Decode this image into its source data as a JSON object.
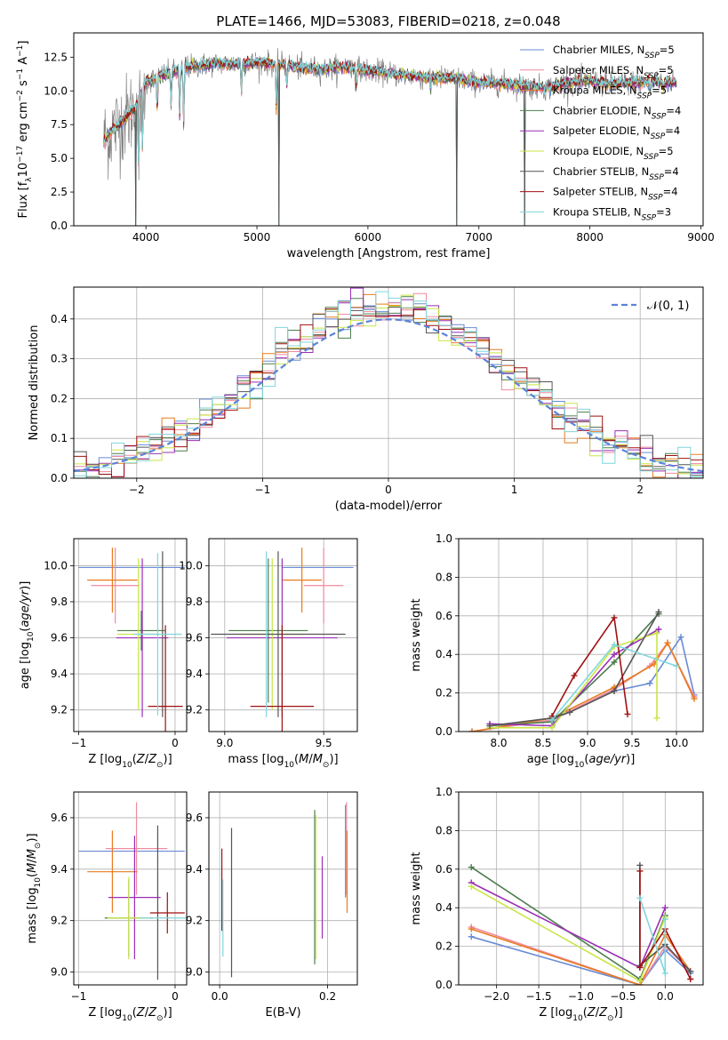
{
  "colors": {
    "Chabrier MILES": "#6a8bd6",
    "Salpeter MILES": "#f08aa0",
    "Kroupa MILES": "#e87b1e",
    "Chabrier ELODIE": "#4e7d4e",
    "Salpeter ELODIE": "#9b2fb5",
    "Kroupa ELODIE": "#c8e646",
    "Chabrier STELIB": "#555555",
    "Salpeter STELIB": "#a01010",
    "Kroupa STELIB": "#7fd6dc",
    "normal": "#5b84d8",
    "grid": "#b0b0b0",
    "data": "#808080"
  },
  "legend": [
    {
      "name": "Chabrier MILES",
      "nssp": "5"
    },
    {
      "name": "Salpeter MILES",
      "nssp": "5"
    },
    {
      "name": "Kroupa MILES",
      "nssp": "5"
    },
    {
      "name": "Chabrier ELODIE",
      "nssp": "4"
    },
    {
      "name": "Salpeter ELODIE",
      "nssp": "4"
    },
    {
      "name": "Kroupa ELODIE",
      "nssp": "5"
    },
    {
      "name": "Chabrier STELIB",
      "nssp": "4"
    },
    {
      "name": "Salpeter STELIB",
      "nssp": "4"
    },
    {
      "name": "Kroupa STELIB",
      "nssp": "3"
    }
  ],
  "chart_data": [
    {
      "id": "spectrum",
      "type": "line",
      "title": "PLATE=1466, MJD=53083, FIBERID=0218, z=0.048",
      "xlabel": "wavelength [Angstrom, rest frame]",
      "ylabel": "Flux [f_λ 10^-17 erg cm^-2 s^-1 A^-1]",
      "xlim": [
        3350,
        9020
      ],
      "ylim": [
        0,
        14.3
      ],
      "xticks": [
        4000,
        5000,
        6000,
        7000,
        8000,
        9000
      ],
      "yticks": [
        0.0,
        2.5,
        5.0,
        7.5,
        10.0,
        12.5
      ],
      "grid": false,
      "legend_position": "top-right",
      "continuum": [
        [
          3620,
          6.3
        ],
        [
          3700,
          7.1
        ],
        [
          3800,
          7.9
        ],
        [
          3900,
          8.7
        ],
        [
          4000,
          10.6
        ],
        [
          4100,
          11.0
        ],
        [
          4200,
          11.3
        ],
        [
          4400,
          11.8
        ],
        [
          4600,
          12.0
        ],
        [
          4800,
          12.0
        ],
        [
          5000,
          12.1
        ],
        [
          5200,
          12.0
        ],
        [
          5400,
          11.7
        ],
        [
          5600,
          11.6
        ],
        [
          5800,
          11.8
        ],
        [
          6000,
          11.5
        ],
        [
          6200,
          11.3
        ],
        [
          6500,
          11.0
        ],
        [
          6800,
          10.9
        ],
        [
          7000,
          10.6
        ],
        [
          7200,
          10.6
        ],
        [
          7400,
          10.4
        ],
        [
          7600,
          10.2
        ],
        [
          7800,
          10.6
        ],
        [
          8000,
          10.7
        ],
        [
          8200,
          10.5
        ],
        [
          8400,
          10.6
        ],
        [
          8600,
          10.7
        ],
        [
          8780,
          10.6
        ]
      ],
      "absorption_features": [
        [
          3934,
          4.0
        ],
        [
          3969,
          5.5
        ],
        [
          4102,
          8.5
        ],
        [
          4227,
          9.0
        ],
        [
          4304,
          8.2
        ],
        [
          4340,
          7.5
        ],
        [
          4861,
          9.8
        ],
        [
          5176,
          8.5
        ],
        [
          5270,
          10.4
        ],
        [
          5893,
          10.3
        ],
        [
          6563,
          10.0
        ],
        [
          8542,
          10.0
        ],
        [
          8662,
          10.0
        ]
      ],
      "model_dips": [
        [
          5200,
          0.0
        ],
        [
          6800,
          0.0
        ],
        [
          7410,
          0.0
        ],
        [
          3910,
          0.0
        ]
      ]
    },
    {
      "id": "residuals",
      "type": "histogram",
      "xlabel": "(data-model)/error",
      "ylabel": "Normed distribution",
      "xlim": [
        -2.5,
        2.5
      ],
      "ylim": [
        0,
        0.48
      ],
      "xticks": [
        -2,
        -1,
        0,
        1,
        2
      ],
      "yticks": [
        0.0,
        0.1,
        0.2,
        0.3,
        0.4
      ],
      "grid": true,
      "legend_position": "top-right",
      "legend": [
        "𝒩(0, 1)"
      ],
      "bin_width": 0.1,
      "bin_start": -2.5
    },
    {
      "id": "age_vs_Z",
      "type": "errorbar",
      "xlabel": "Z [log10(Z/Z⊙)]",
      "ylabel": "age [log10(age/yr)]",
      "xlim": [
        -1.05,
        0.12
      ],
      "ylim": [
        9.08,
        10.15
      ],
      "xticks": [
        -1,
        0
      ],
      "yticks": [
        9.2,
        9.4,
        9.6,
        9.8,
        10.0
      ],
      "grid": true,
      "points": [
        {
          "m": "Chabrier MILES",
          "x": -0.45,
          "xerr": 0.55,
          "y": 9.99,
          "yerr": 0.0
        },
        {
          "m": "Salpeter MILES",
          "x": -0.62,
          "xerr": 0.25,
          "y": 9.89,
          "yerr": 0.21
        },
        {
          "m": "Kroupa MILES",
          "x": -0.65,
          "xerr": 0.26,
          "y": 9.92,
          "yerr": 0.18
        },
        {
          "m": "Chabrier ELODIE",
          "x": -0.35,
          "xerr": 0.25,
          "y": 9.64,
          "yerr": 0.11
        },
        {
          "m": "Salpeter ELODIE",
          "x": -0.34,
          "xerr": 0.27,
          "y": 9.6,
          "yerr": 0.44
        },
        {
          "m": "Kroupa ELODIE",
          "x": -0.38,
          "xerr": 0.22,
          "y": 9.62,
          "yerr": 0.42
        },
        {
          "m": "Chabrier STELIB",
          "x": -0.13,
          "xerr": 0.0,
          "y": 9.62,
          "yerr": 0.46
        },
        {
          "m": "Salpeter STELIB",
          "x": -0.1,
          "xerr": 0.18,
          "y": 9.22,
          "yerr": 0.45
        },
        {
          "m": "Kroupa STELIB",
          "x": -0.18,
          "xerr": 0.25,
          "y": 9.62,
          "yerr": 0.45
        }
      ]
    },
    {
      "id": "age_vs_mass",
      "type": "errorbar",
      "xlabel": "mass [log10(M/M⊙)]",
      "ylabel": "",
      "xlim": [
        8.92,
        9.67
      ],
      "ylim": [
        9.08,
        10.15
      ],
      "xticks": [
        9.0,
        9.5
      ],
      "yticks": [
        9.2,
        9.4,
        9.6,
        9.8,
        10.0
      ],
      "grid": true,
      "points": [
        {
          "m": "Chabrier MILES",
          "x": 9.47,
          "xerr": 0.18,
          "y": 9.99,
          "yerr": 0.0
        },
        {
          "m": "Salpeter MILES",
          "x": 9.5,
          "xerr": 0.1,
          "y": 9.89,
          "yerr": 0.21
        },
        {
          "m": "Kroupa MILES",
          "x": 9.39,
          "xerr": 0.1,
          "y": 9.92,
          "yerr": 0.18
        },
        {
          "m": "Chabrier ELODIE",
          "x": 9.22,
          "xerr": 0.2,
          "y": 9.64,
          "yerr": 0.4
        },
        {
          "m": "Salpeter ELODIE",
          "x": 9.29,
          "xerr": 0.28,
          "y": 9.6,
          "yerr": 0.44
        },
        {
          "m": "Kroupa ELODIE",
          "x": 9.24,
          "xerr": 0.16,
          "y": 9.62,
          "yerr": 0.42
        },
        {
          "m": "Chabrier STELIB",
          "x": 9.27,
          "xerr": 0.34,
          "y": 9.62,
          "yerr": 0.46
        },
        {
          "m": "Salpeter STELIB",
          "x": 9.29,
          "xerr": 0.16,
          "y": 9.22,
          "yerr": 0.45
        },
        {
          "m": "Kroupa STELIB",
          "x": 9.21,
          "xerr": 0.0,
          "y": 9.62,
          "yerr": 0.46
        }
      ]
    },
    {
      "id": "weight_vs_age",
      "type": "line",
      "xlabel": "age [log10(age/yr)]",
      "ylabel": "mass weight",
      "xlim": [
        7.55,
        10.3
      ],
      "ylim": [
        0,
        1.0
      ],
      "xticks": [
        8.0,
        8.5,
        9.0,
        9.5,
        10.0
      ],
      "yticks": [
        0.0,
        0.2,
        0.4,
        0.6,
        0.8,
        1.0
      ],
      "grid": true,
      "series": [
        {
          "m": "Chabrier MILES",
          "x": [
            7.7,
            8.6,
            9.3,
            9.7,
            10.05,
            10.2
          ],
          "y": [
            0.0,
            0.06,
            0.21,
            0.25,
            0.49,
            0.19
          ]
        },
        {
          "m": "Salpeter MILES",
          "x": [
            7.7,
            8.6,
            9.3,
            9.7,
            9.9,
            10.2
          ],
          "y": [
            0.0,
            0.06,
            0.22,
            0.34,
            0.46,
            0.18
          ]
        },
        {
          "m": "Kroupa MILES",
          "x": [
            7.7,
            8.6,
            9.3,
            9.75,
            9.9,
            10.2
          ],
          "y": [
            0.0,
            0.07,
            0.23,
            0.35,
            0.46,
            0.17
          ]
        },
        {
          "m": "Chabrier ELODIE",
          "x": [
            7.9,
            8.6,
            9.3,
            9.8
          ],
          "y": [
            0.03,
            0.05,
            0.36,
            0.61
          ]
        },
        {
          "m": "Salpeter ELODIE",
          "x": [
            7.9,
            8.6,
            9.3,
            9.8
          ],
          "y": [
            0.04,
            0.03,
            0.4,
            0.53
          ]
        },
        {
          "m": "Kroupa ELODIE",
          "x": [
            7.9,
            8.6,
            9.3,
            9.78,
            9.78
          ],
          "y": [
            0.02,
            0.02,
            0.44,
            0.51,
            0.07
          ]
        },
        {
          "m": "Chabrier STELIB",
          "x": [
            7.9,
            8.6,
            8.8,
            9.3,
            9.8
          ],
          "y": [
            0.03,
            0.07,
            0.1,
            0.21,
            0.62
          ]
        },
        {
          "m": "Salpeter STELIB",
          "x": [
            8.6,
            8.85,
            9.3,
            9.45
          ],
          "y": [
            0.08,
            0.29,
            0.59,
            0.09
          ]
        },
        {
          "m": "Kroupa STELIB",
          "x": [
            8.6,
            9.3,
            10.0
          ],
          "y": [
            0.06,
            0.45,
            0.34
          ]
        }
      ]
    },
    {
      "id": "mass_vs_Z",
      "type": "errorbar",
      "xlabel": "Z [log10(Z/Z⊙)]",
      "ylabel": "mass [log10(M/M⊙)]",
      "xlim": [
        -1.05,
        0.12
      ],
      "ylim": [
        8.95,
        9.7
      ],
      "xticks": [
        -1,
        0
      ],
      "yticks": [
        9.0,
        9.2,
        9.4,
        9.6
      ],
      "grid": true,
      "points": [
        {
          "m": "Chabrier MILES",
          "x": -0.45,
          "xerr": 0.55,
          "y": 9.47,
          "yerr": 0.0
        },
        {
          "m": "Salpeter MILES",
          "x": -0.4,
          "xerr": 0.32,
          "y": 9.48,
          "yerr": 0.18
        },
        {
          "m": "Kroupa MILES",
          "x": -0.65,
          "xerr": 0.26,
          "y": 9.39,
          "yerr": 0.16
        },
        {
          "m": "Chabrier ELODIE",
          "x": -0.48,
          "xerr": 0.25,
          "y": 9.21,
          "yerr": 0.15
        },
        {
          "m": "Salpeter ELODIE",
          "x": -0.42,
          "xerr": 0.27,
          "y": 9.29,
          "yerr": 0.24
        },
        {
          "m": "Kroupa ELODIE",
          "x": -0.48,
          "xerr": 0.22,
          "y": 9.21,
          "yerr": 0.16
        },
        {
          "m": "Chabrier STELIB",
          "x": -0.18,
          "xerr": 0.0,
          "y": 9.27,
          "yerr": 0.3
        },
        {
          "m": "Salpeter STELIB",
          "x": -0.08,
          "xerr": 0.18,
          "y": 9.23,
          "yerr": 0.08
        },
        {
          "m": "Kroupa STELIB",
          "x": -0.12,
          "xerr": 0.25,
          "y": 9.21,
          "yerr": 0.0
        }
      ]
    },
    {
      "id": "mass_vs_ebv",
      "type": "errorbar",
      "xlabel": "E(B-V)",
      "ylabel": "",
      "xlim": [
        -0.02,
        0.255
      ],
      "ylim": [
        8.95,
        9.7
      ],
      "xticks": [
        0.0,
        0.2
      ],
      "yticks": [
        9.0,
        9.2,
        9.4,
        9.6
      ],
      "grid": true,
      "points": [
        {
          "m": "Chabrier MILES",
          "x": 0.233,
          "y": 9.47,
          "yerr": 0.18
        },
        {
          "m": "Salpeter MILES",
          "x": 0.235,
          "y": 9.48,
          "yerr": 0.18
        },
        {
          "m": "Kroupa MILES",
          "x": 0.236,
          "y": 9.39,
          "yerr": 0.16
        },
        {
          "m": "Chabrier ELODIE",
          "x": 0.176,
          "y": 9.33,
          "yerr": 0.3
        },
        {
          "m": "Salpeter ELODIE",
          "x": 0.19,
          "y": 9.29,
          "yerr": 0.16
        },
        {
          "m": "Kroupa ELODIE",
          "x": 0.178,
          "y": 9.33,
          "yerr": 0.28
        },
        {
          "m": "Chabrier STELIB",
          "x": 0.022,
          "y": 9.27,
          "yerr": 0.29
        },
        {
          "m": "Salpeter STELIB",
          "x": 0.004,
          "y": 9.32,
          "yerr": 0.16
        },
        {
          "m": "Kroupa STELIB",
          "x": 0.006,
          "y": 9.21,
          "yerr": 0.15
        }
      ]
    },
    {
      "id": "weight_vs_Z",
      "type": "line",
      "xlabel": "Z [log10(Z/Z⊙)]",
      "ylabel": "mass weight",
      "xlim": [
        -2.45,
        0.45
      ],
      "ylim": [
        0,
        1.0
      ],
      "xticks": [
        -2.0,
        -1.5,
        -1.0,
        -0.5,
        0.0
      ],
      "yticks": [
        0.0,
        0.2,
        0.4,
        0.6,
        0.8,
        1.0
      ],
      "grid": true,
      "series": [
        {
          "m": "Chabrier MILES",
          "x": [
            -2.3,
            -0.3,
            0.0,
            0.3
          ],
          "y": [
            0.25,
            0.0,
            0.18,
            0.06
          ]
        },
        {
          "m": "Salpeter MILES",
          "x": [
            -2.3,
            -0.3,
            0.0,
            0.3
          ],
          "y": [
            0.3,
            0.0,
            0.2,
            0.07
          ]
        },
        {
          "m": "Kroupa MILES",
          "x": [
            -2.3,
            -0.3,
            0.0,
            0.3
          ],
          "y": [
            0.29,
            0.0,
            0.26,
            0.07
          ]
        },
        {
          "m": "Chabrier ELODIE",
          "x": [
            -2.3,
            -0.3,
            0.0
          ],
          "y": [
            0.61,
            0.03,
            0.36
          ]
        },
        {
          "m": "Salpeter ELODIE",
          "x": [
            -2.3,
            -0.3,
            0.0
          ],
          "y": [
            0.53,
            0.09,
            0.4
          ]
        },
        {
          "m": "Kroupa ELODIE",
          "x": [
            -2.3,
            -0.3,
            0.0
          ],
          "y": [
            0.51,
            0.02,
            0.35
          ]
        },
        {
          "m": "Chabrier STELIB",
          "x": [
            -0.3,
            -0.3,
            0.0,
            0.3
          ],
          "y": [
            0.62,
            0.1,
            0.21,
            0.07
          ]
        },
        {
          "m": "Salpeter STELIB",
          "x": [
            -0.3,
            -0.3,
            0.0,
            0.3
          ],
          "y": [
            0.59,
            0.09,
            0.29,
            0.03
          ]
        },
        {
          "m": "Kroupa STELIB",
          "x": [
            -0.3,
            0.0,
            0.0
          ],
          "y": [
            0.45,
            0.06,
            0.34
          ]
        }
      ]
    }
  ]
}
